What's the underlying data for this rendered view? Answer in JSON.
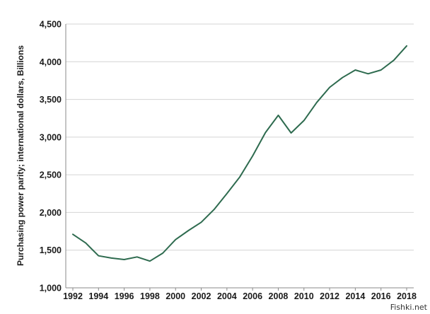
{
  "chart_data": {
    "type": "line",
    "title": "",
    "xlabel": "",
    "ylabel": "Purchasing power parity; international dollars, Billions",
    "x_tick_labels": [
      "1992",
      "1994",
      "1996",
      "1998",
      "2000",
      "2002",
      "2004",
      "2006",
      "2008",
      "2010",
      "2012",
      "2014",
      "2016",
      "2018"
    ],
    "y_tick_labels": [
      "1,000",
      "1,500",
      "2,000",
      "2,500",
      "3,000",
      "3,500",
      "4,000",
      "4,500"
    ],
    "xlim": [
      1992,
      2018
    ],
    "ylim": [
      1000,
      4500
    ],
    "grid": true,
    "series": [
      {
        "color": "#2e6b4f",
        "x": [
          1992,
          1993,
          1994,
          1995,
          1996,
          1997,
          1998,
          1999,
          2000,
          2001,
          2002,
          2003,
          2004,
          2005,
          2006,
          2007,
          2008,
          2009,
          2010,
          2011,
          2012,
          2013,
          2014,
          2015,
          2016,
          2017,
          2018
        ],
        "values": [
          1710,
          1595,
          1425,
          1395,
          1375,
          1410,
          1355,
          1460,
          1640,
          1760,
          1870,
          2040,
          2250,
          2470,
          2750,
          3060,
          3290,
          3055,
          3220,
          3460,
          3660,
          3790,
          3890,
          3840,
          3890,
          4020,
          4210
        ]
      }
    ]
  },
  "watermark": "Fishki.net"
}
